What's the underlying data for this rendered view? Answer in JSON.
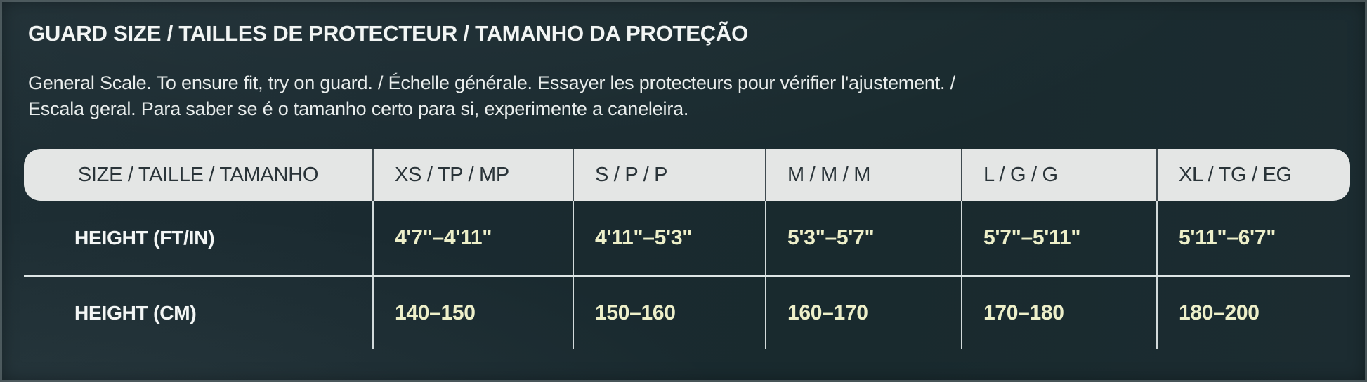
{
  "title": "GUARD SIZE / TAILLES DE PROTECTEUR / TAMANHO DA PROTEÇÃO",
  "description": {
    "line1": "General Scale. To ensure fit, try on guard. / Échelle générale. Essayer les protecteurs pour vérifier l'ajustement. /",
    "line2": "Escala geral. Para saber se é o tamanho certo para si, experimente a caneleira."
  },
  "size_table": {
    "columns": [
      "SIZE / TAILLE / TAMANHO",
      "XS / TP / MP",
      "S / P / P",
      "M / M / M",
      "L / G / G",
      "XL / TG / EG"
    ],
    "rows": [
      {
        "label": "HEIGHT (FT/IN)",
        "values": [
          "4'7\"–4'11\"",
          "4'11\"–5'3\"",
          "5'3\"–5'7\"",
          "5'7\"–5'11\"",
          "5'11\"–6'7\""
        ]
      },
      {
        "label": "HEIGHT (CM)",
        "values": [
          "140–150",
          "150–160",
          "160–170",
          "170–180",
          "180–200"
        ]
      }
    ]
  },
  "colors": {
    "background": "#1a2a2f",
    "header_background": "#e4e6e5",
    "header_text": "#2a3439",
    "value_text": "#edefc9",
    "label_text": "#f3f6f5",
    "divider": "#dde5e5"
  }
}
